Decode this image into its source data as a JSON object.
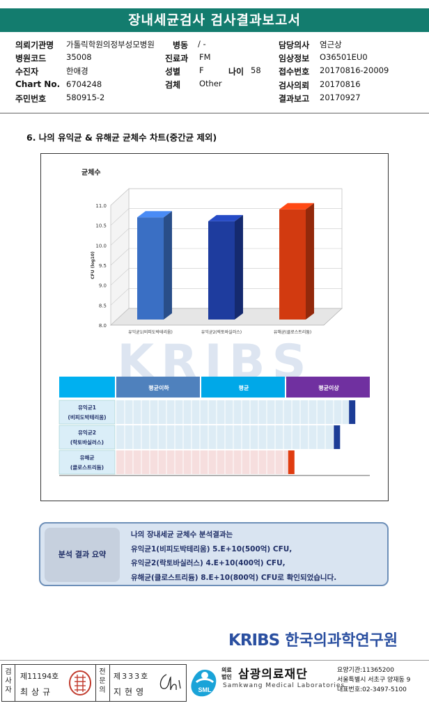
{
  "report_title": "장내세균검사 검사결과보고서",
  "patient_info": {
    "institution_label": "의뢰기관명",
    "institution_value": "가톨릭학원의정부성모병원",
    "ward_label": "병동",
    "ward_value": "/ -",
    "doctor_label": "담당의사",
    "doctor_value": "염근상",
    "hospital_code_label": "병원코드",
    "hospital_code_value": "35008",
    "dept_label": "진료과",
    "dept_value": "FM",
    "clinical_label": "임상정보",
    "clinical_value": "O36501EU0",
    "patient_label": "수진자",
    "patient_value": "한애경",
    "sex_label": "성별",
    "sex_value": "F",
    "age_label": "나이",
    "age_value": "58",
    "receipt_label": "접수번호",
    "receipt_value": "20170816-20009",
    "chart_label": "Chart No.",
    "chart_value": "6704248",
    "specimen_label": "검체",
    "specimen_value": "Other",
    "request_label": "검사의뢰",
    "request_value": "20170816",
    "id_label": "주민번호",
    "id_value": "580915-2",
    "report_label": "결과보고",
    "report_value": "20170927"
  },
  "section_title": "6. 나의 유익균 & 유해균 균체수 차트(중간균 제외)",
  "chart_data": {
    "type": "bar",
    "title": "균체수",
    "ylabel": "CFU (log10)",
    "ylim": [
      8.0,
      11.0
    ],
    "yticks": [
      "8.0",
      "8.5",
      "9.0",
      "9.5",
      "10.0",
      "10.5",
      "11.0"
    ],
    "categories": [
      "유익균1(비피도박테리움)",
      "유익균2(락토바실러스)",
      "유해균(클로스트리듐)"
    ],
    "values": [
      10.7,
      10.6,
      10.9
    ],
    "colors": [
      "#3a6fc4",
      "#1e3c9e",
      "#d23a10"
    ]
  },
  "level_table": {
    "headers": [
      "평균이하",
      "평균",
      "평균이상"
    ],
    "header_colors": [
      "#4f81bd",
      "#00a8e8",
      "#7030a0"
    ],
    "rows": [
      {
        "line1": "유익균1",
        "line2": "(비피도박테리움)",
        "level": 0.94,
        "marker_color": "#1c3c96"
      },
      {
        "line1": "유익균2",
        "line2": "(락토바실러스)",
        "level": 0.88,
        "marker_color": "#1c3c96"
      },
      {
        "line1": "유해균",
        "line2": "(클로스트리듐)",
        "level": 0.7,
        "marker_color": "#e03c10"
      }
    ]
  },
  "watermark": "KRIBS",
  "summary": {
    "tag": "분석 결과 요약",
    "line1": "나의 장내세균 균체수 분석결과는",
    "line2": "유익균1(비피도박테리움) 5.E+10(500억) CFU,",
    "line3": "유익균2(락토바실러스) 4.E+10(400억) CFU,",
    "line4": "유해균(클로스트리듐) 8.E+10(800억) CFU로 확인되었습니다."
  },
  "kribs": {
    "logo": "KRIBS",
    "name": "한국의과학연구원"
  },
  "footer": {
    "examiner_label": "검사자",
    "examiner_no": "제11194호",
    "examiner_name": "최상규",
    "specialist_label": "전문의",
    "specialist_no": "제333호",
    "specialist_name": "지현영",
    "sml": "SML",
    "org_prefix_1": "의료",
    "org_prefix_2": "법인",
    "org_name": "삼광의료재단",
    "org_en": "Samkwang Medical Laboratories",
    "org_code": "요양기관:11365200",
    "org_address": "서울특별시 서초구 양재동 9",
    "org_phone": "대표번호:02-3497-5100"
  }
}
